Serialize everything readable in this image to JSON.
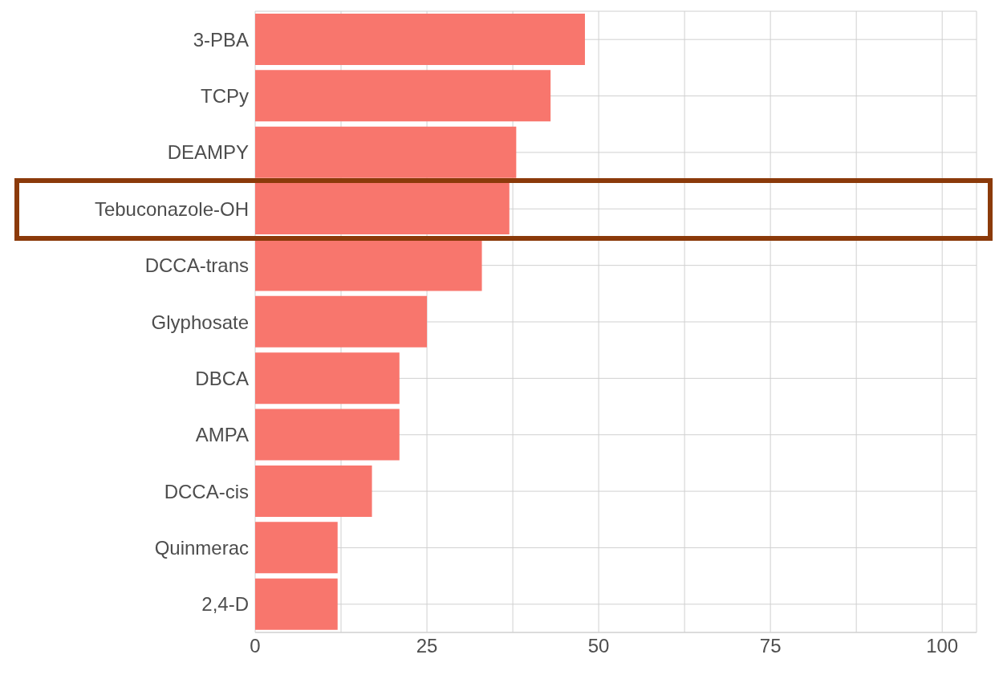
{
  "chart_data": {
    "type": "bar",
    "orientation": "horizontal",
    "categories": [
      "3-PBA",
      "TCPy",
      "DEAMPY",
      "Tebuconazole-OH",
      "DCCA-trans",
      "Glyphosate",
      "DBCA",
      "AMPA",
      "DCCA-cis",
      "Quinmerac",
      "2,4-D"
    ],
    "values": [
      48,
      43,
      38,
      37,
      33,
      25,
      21,
      21,
      17,
      12,
      12
    ],
    "color": "#f8766d",
    "xlim": [
      0,
      105
    ],
    "xticks": [
      0,
      {
        "value": 12.5,
        "label": null
      },
      25,
      {
        "value": 37.5,
        "label": null
      },
      50,
      {
        "value": 62.5,
        "label": null
      },
      75,
      {
        "value": 87.5,
        "label": null
      },
      100
    ],
    "grid": true,
    "legend": false
  }
}
